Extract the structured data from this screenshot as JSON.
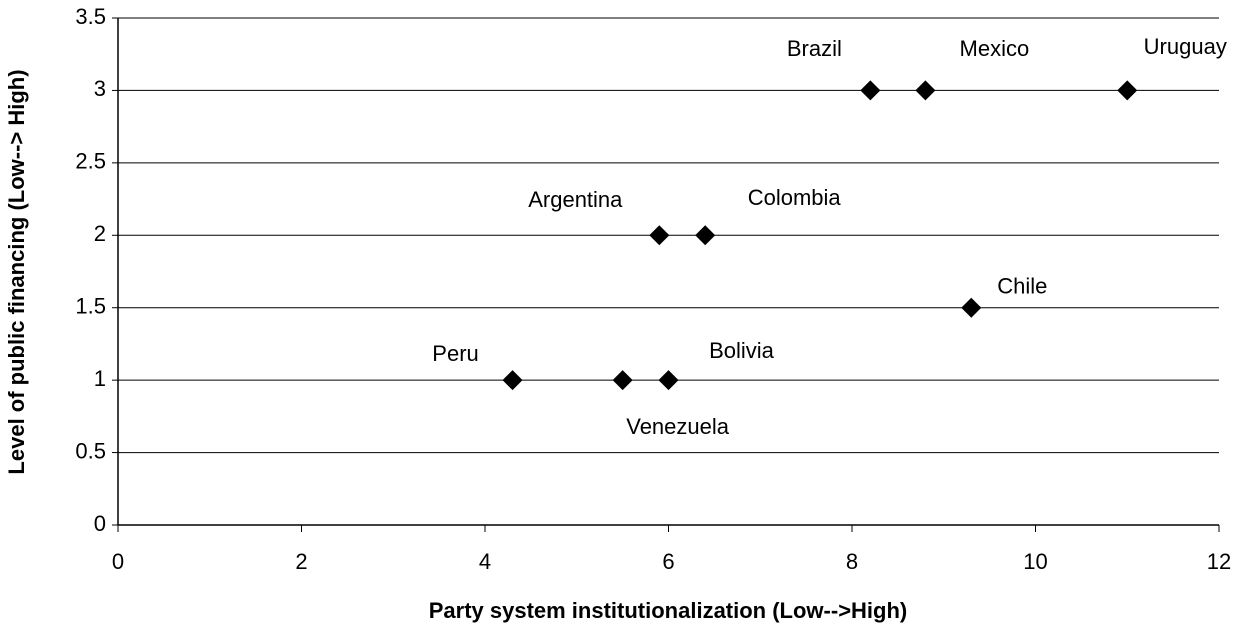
{
  "chart_data": {
    "type": "scatter",
    "x_label": "Party system institutionalization (Low-->High)",
    "y_label": "Level of public financing (Low--> High)",
    "labels": [
      "Brazil",
      "Mexico",
      "Uruguay",
      "Argentina",
      "Colombia",
      "Chile",
      "Peru",
      "Venezuela",
      "Bolivia"
    ],
    "x": [
      8.2,
      8.8,
      11.0,
      5.9,
      6.4,
      9.3,
      4.3,
      5.5,
      6.0
    ],
    "values": [
      3,
      3,
      3,
      2,
      2,
      1.5,
      1,
      1,
      1
    ],
    "color": "#000000",
    "xlim": [
      0,
      12
    ],
    "xticks": [
      0,
      2,
      4,
      6,
      8,
      10,
      12
    ],
    "ylim": [
      0,
      3.5
    ],
    "yticks": [
      0,
      0.5,
      1,
      1.5,
      2,
      2.5,
      3,
      3.5
    ],
    "grid": true
  }
}
